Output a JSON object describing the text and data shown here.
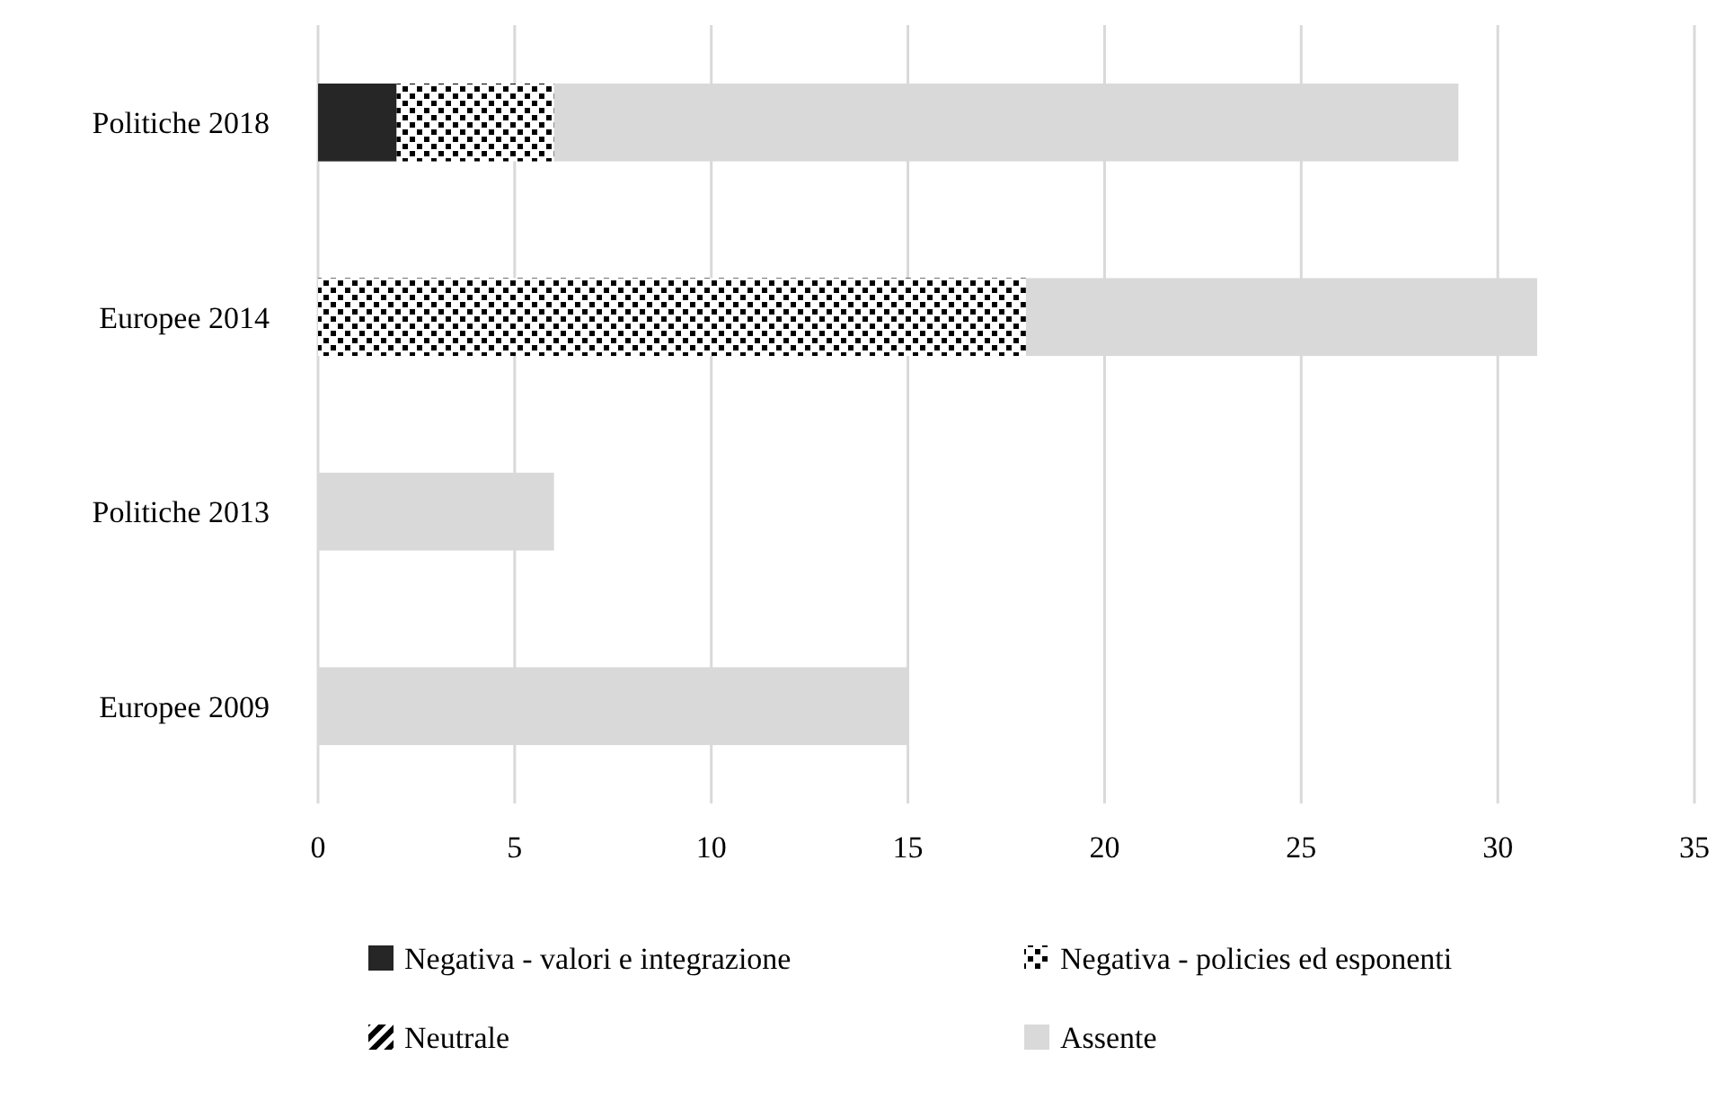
{
  "chart_data": {
    "type": "bar",
    "orientation": "horizontal",
    "stacked": true,
    "categories": [
      "Politiche 2018",
      "Europee 2014",
      "Politiche 2013",
      "Europee 2009"
    ],
    "series": [
      {
        "name": "Negativa - valori e integrazione",
        "color": "#262626",
        "values": [
          2,
          0,
          0,
          0
        ]
      },
      {
        "name": "Negativa - policies ed esponenti",
        "color": "#000000",
        "values": [
          4,
          18,
          0,
          0
        ]
      },
      {
        "name": "Neutrale",
        "color": "#000000",
        "values": [
          0,
          0,
          0,
          0
        ]
      },
      {
        "name": "Assente",
        "color": "#d9d9d9",
        "values": [
          23,
          13,
          6,
          15
        ]
      }
    ],
    "xlim": [
      0,
      35
    ],
    "xticks": [
      0,
      5,
      10,
      15,
      20,
      25,
      30,
      35
    ],
    "grid": "x",
    "legend": "bottom"
  }
}
